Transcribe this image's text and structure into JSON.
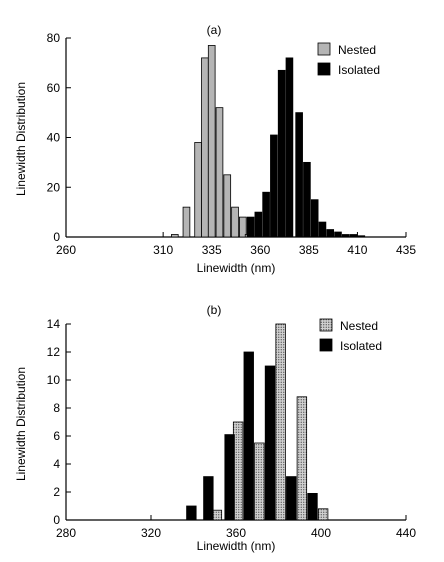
{
  "chart_data": [
    {
      "type": "bar",
      "title": "(a)",
      "xlabel": "Linewidth (nm)",
      "ylabel": "Linewidth Distribution",
      "xlim": [
        260,
        435
      ],
      "ylim": [
        0,
        80
      ],
      "xticks": [
        260,
        310,
        335,
        360,
        385,
        410,
        435
      ],
      "yticks": [
        0,
        20,
        40,
        60,
        80
      ],
      "grid": false,
      "legend": "top-right",
      "bar_width": 3.5,
      "series": [
        {
          "name": "Nested",
          "fill": "#b5b5b5",
          "points": [
            [
              316,
              1
            ],
            [
              322,
              12
            ],
            [
              328,
              38
            ],
            [
              331.5,
              72
            ],
            [
              335,
              77
            ],
            [
              339,
              52
            ],
            [
              343,
              25
            ],
            [
              347,
              12
            ],
            [
              351,
              8
            ],
            [
              354,
              1
            ]
          ]
        },
        {
          "name": "Isolated",
          "fill": "#000000",
          "points": [
            [
              355,
              8
            ],
            [
              359,
              10
            ],
            [
              363,
              18
            ],
            [
              367,
              41
            ],
            [
              371,
              67
            ],
            [
              375,
              72
            ],
            [
              380,
              50
            ],
            [
              384,
              30
            ],
            [
              388,
              15
            ],
            [
              392,
              6
            ],
            [
              396,
              3
            ],
            [
              400,
              2
            ],
            [
              404,
              1
            ],
            [
              408,
              1
            ],
            [
              412,
              0.5
            ]
          ]
        }
      ]
    },
    {
      "type": "bar",
      "title": "(b)",
      "xlabel": "Linewidth (nm)",
      "ylabel": "Linewidth Distribution",
      "xlim": [
        280,
        440
      ],
      "ylim": [
        0,
        14
      ],
      "xticks": [
        280,
        320,
        360,
        400,
        440
      ],
      "yticks": [
        0,
        2,
        4,
        6,
        8,
        10,
        12,
        14
      ],
      "grid": false,
      "legend": "top-right",
      "bar_width": 4.5,
      "series": [
        {
          "name": "Nested",
          "fill": "#c8c8c8",
          "hatched": true,
          "points": [
            [
              351,
              0.7
            ],
            [
              361,
              7
            ],
            [
              371,
              5.5
            ],
            [
              381,
              14
            ],
            [
              391,
              8.8
            ],
            [
              401,
              0.8
            ]
          ]
        },
        {
          "name": "Isolated",
          "fill": "#000000",
          "points": [
            [
              339,
              1
            ],
            [
              347,
              3.1
            ],
            [
              357,
              6.1
            ],
            [
              366,
              12
            ],
            [
              376,
              11
            ],
            [
              386,
              3.1
            ],
            [
              396,
              1.9
            ]
          ]
        }
      ]
    }
  ]
}
